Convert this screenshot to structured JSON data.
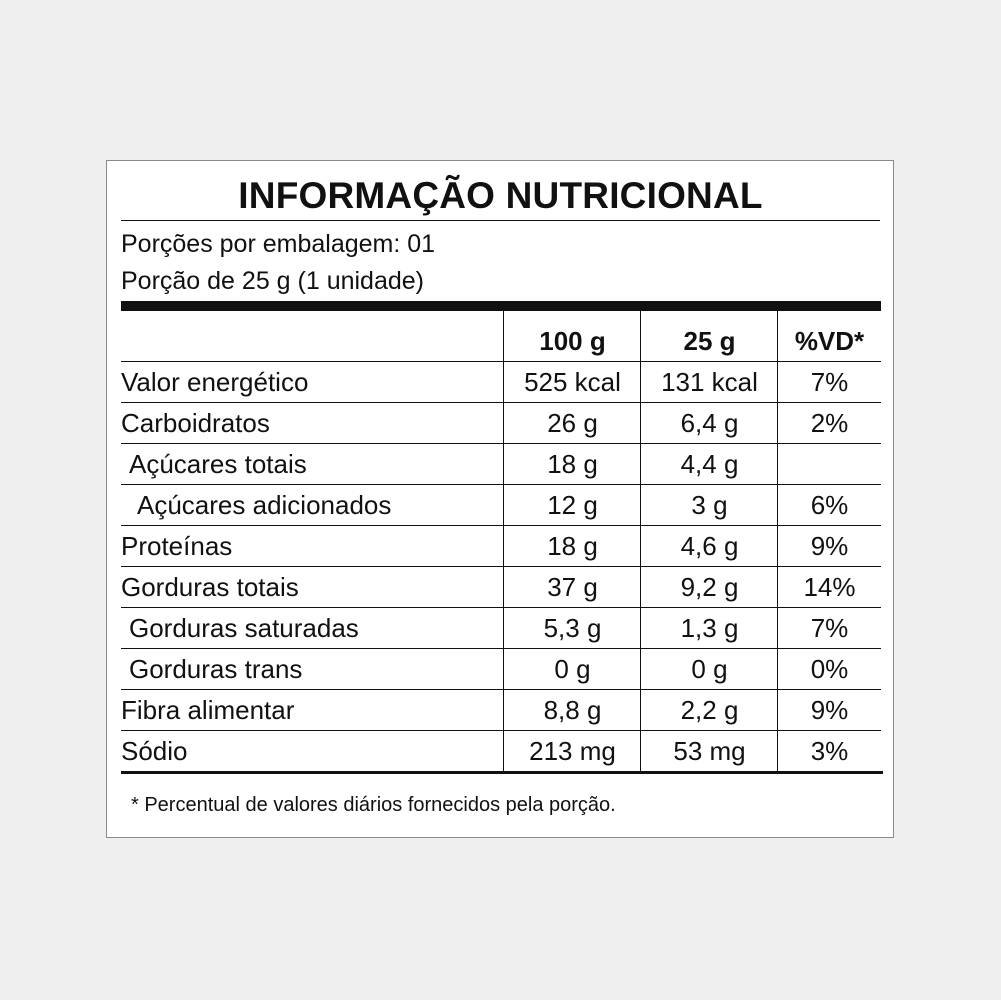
{
  "label": {
    "title": "INFORMAÇÃO NUTRICIONAL",
    "servings_per_package": "Porções por embalagem: 01",
    "serving_size": "Porção de 25 g (1 unidade)",
    "columns": [
      "",
      "100 g",
      "25 g",
      "%VD*"
    ],
    "rows": [
      {
        "name": "Valor energético",
        "per100": "525 kcal",
        "perServing": "131 kcal",
        "vd": "7%"
      },
      {
        "name": "Carboidratos",
        "per100": "26 g",
        "perServing": "6,4 g",
        "vd": "2%"
      },
      {
        "name": "Açúcares totais",
        "per100": "18 g",
        "perServing": "4,4 g",
        "vd": ""
      },
      {
        "name": "Açúcares adicionados",
        "per100": "12 g",
        "perServing": "3 g",
        "vd": "6%"
      },
      {
        "name": "Proteínas",
        "per100": "18 g",
        "perServing": "4,6 g",
        "vd": "9%"
      },
      {
        "name": "Gorduras totais",
        "per100": "37 g",
        "perServing": "9,2 g",
        "vd": "14%"
      },
      {
        "name": "Gorduras saturadas",
        "per100": "5,3 g",
        "perServing": "1,3 g",
        "vd": "7%"
      },
      {
        "name": "Gorduras trans",
        "per100": "0 g",
        "perServing": "0 g",
        "vd": "0%"
      },
      {
        "name": "Fibra alimentar",
        "per100": "8,8 g",
        "perServing": "2,2 g",
        "vd": "9%"
      },
      {
        "name": "Sódio",
        "per100": "213 mg",
        "perServing": "53 mg",
        "vd": "3%"
      }
    ],
    "footnote": "* Percentual de valores diários fornecidos pela porção."
  }
}
